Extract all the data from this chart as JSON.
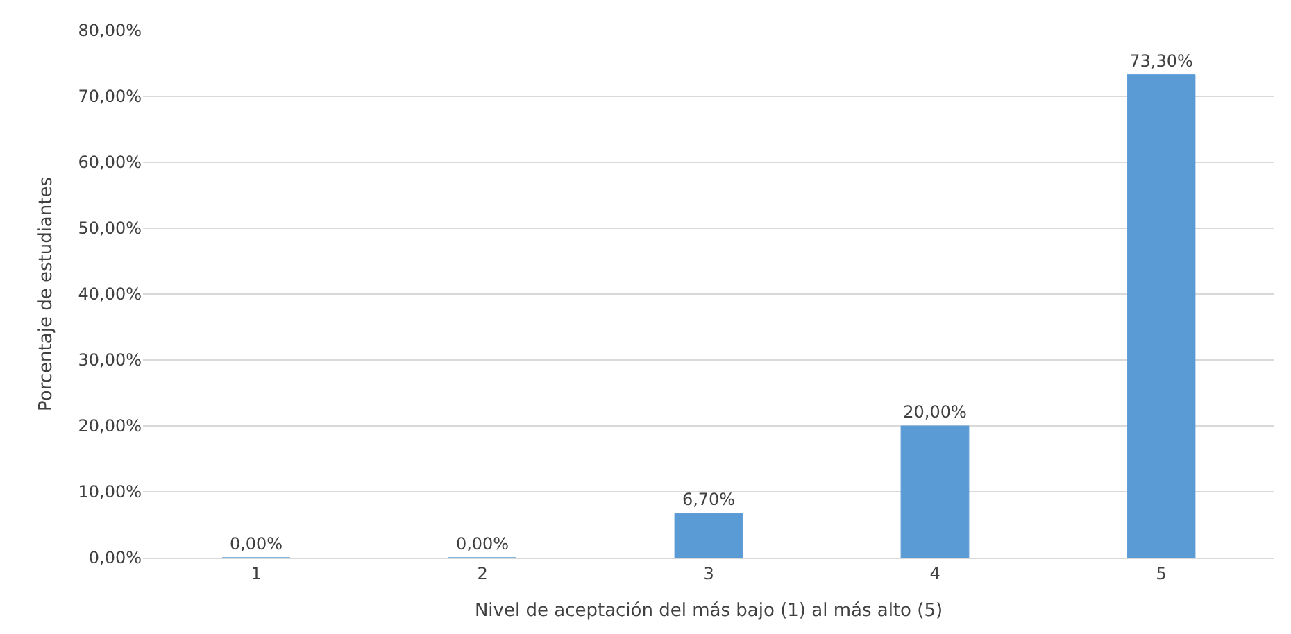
{
  "chart_data": {
    "type": "bar",
    "xlabel": "Nivel de aceptación del más bajo (1) al más alto (5)",
    "ylabel": "Porcentaje de estudiantes",
    "categories": [
      "1",
      "2",
      "3",
      "4",
      "5"
    ],
    "values": [
      0,
      0,
      6.7,
      20,
      73.3
    ],
    "value_labels": [
      "0,00%",
      "0,00%",
      "6,70%",
      "20,00%",
      "73,30%"
    ],
    "color": "#5b9bd5",
    "ylim": [
      0,
      80
    ],
    "yticks": [
      {
        "value": 0,
        "label": "0,00%"
      },
      {
        "value": 10,
        "label": "10,00%"
      },
      {
        "value": 20,
        "label": "20,00%"
      },
      {
        "value": 30,
        "label": "30,00%"
      },
      {
        "value": 40,
        "label": "40,00%"
      },
      {
        "value": 50,
        "label": "50,00%"
      },
      {
        "value": 60,
        "label": "60,00%"
      },
      {
        "value": 70,
        "label": "70,00%"
      },
      {
        "value": 80,
        "label": "80,00%"
      }
    ],
    "grid": "y",
    "legend": false
  }
}
